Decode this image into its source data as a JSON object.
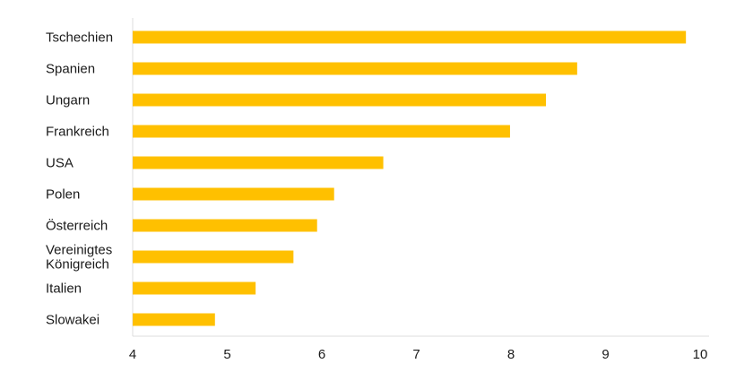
{
  "chart_data": {
    "type": "bar",
    "orientation": "horizontal",
    "title": "",
    "xlabel": "",
    "ylabel": "",
    "categories": [
      [
        "Tschechien"
      ],
      [
        "Spanien"
      ],
      [
        "Ungarn"
      ],
      [
        "Frankreich"
      ],
      [
        "USA"
      ],
      [
        "Polen"
      ],
      [
        "Österreich"
      ],
      [
        "Vereinigtes",
        "Königreich"
      ],
      [
        "Italien"
      ],
      [
        "Slowakei"
      ]
    ],
    "values": [
      9.85,
      8.7,
      8.37,
      7.99,
      6.65,
      6.13,
      5.95,
      5.7,
      5.3,
      4.87
    ],
    "xlim": [
      4,
      10
    ],
    "xticks": [
      "4",
      "5",
      "6",
      "7",
      "8",
      "9",
      "10"
    ],
    "bar_color": "#FFC000",
    "axis_color": "#dcdcdc",
    "grid": false,
    "legend": "none"
  }
}
